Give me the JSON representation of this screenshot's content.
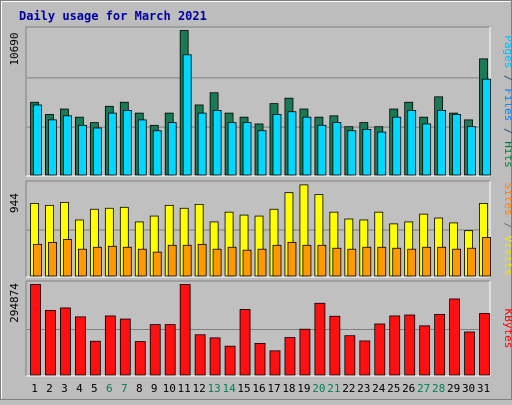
{
  "chart_data": {
    "type": "bar",
    "title": "Daily usage for March 2021",
    "categories": [
      "1",
      "2",
      "3",
      "4",
      "5",
      "6",
      "7",
      "8",
      "9",
      "10",
      "11",
      "12",
      "13",
      "14",
      "15",
      "16",
      "17",
      "18",
      "19",
      "20",
      "21",
      "22",
      "23",
      "24",
      "25",
      "26",
      "27",
      "28",
      "29",
      "30",
      "31"
    ],
    "weekend_days": [
      "6",
      "7",
      "13",
      "14",
      "20",
      "21",
      "27",
      "28"
    ],
    "panels": [
      {
        "id": "pages-files-hits",
        "ylabel_parts": [
          {
            "text": "Pages",
            "color": "#00c0ff"
          },
          {
            "text": " / ",
            "color": "#2a4f88"
          },
          {
            "text": "Files",
            "color": "#0080ff"
          },
          {
            "text": " / ",
            "color": "#2a4f88"
          },
          {
            "text": "Hits",
            "color": "#008040"
          }
        ],
        "max_label": "10690",
        "max": 10690,
        "gridline_fractions": [
          0.67,
          0.33
        ],
        "series": [
          {
            "name": "Hits",
            "color": "#1a7a55",
            "values": [
              5400,
              4500,
              4900,
              4300,
              3900,
              5100,
              5400,
              4600,
              3700,
              4600,
              10690,
              5200,
              6100,
              4600,
              4300,
              3800,
              5300,
              5700,
              4900,
              4300,
              4400,
              3600,
              3900,
              3600,
              4900,
              5400,
              4300,
              5800,
              4600,
              4100,
              8600
            ]
          },
          {
            "name": "Pages",
            "color": "#00d8ff",
            "values": [
              5200,
              4100,
              4400,
              3700,
              3500,
              4600,
              4800,
              4100,
              3300,
              3900,
              8900,
              4600,
              4800,
              3900,
              3900,
              3300,
              4500,
              4700,
              4300,
              3700,
              3900,
              3300,
              3400,
              3200,
              4300,
              4800,
              3800,
              4800,
              4500,
              3600,
              7100
            ]
          }
        ]
      },
      {
        "id": "sites-visits",
        "ylabel_parts": [
          {
            "text": "Sites",
            "color": "#ff8000"
          },
          {
            "text": " / ",
            "color": "#707070"
          },
          {
            "text": "Visits",
            "color": "#e8e800"
          }
        ],
        "max_label": "944",
        "max": 944,
        "gridline_fractions": [
          0.5
        ],
        "series": [
          {
            "name": "Visits",
            "color": "#ffff00",
            "values": [
              750,
              730,
              760,
              580,
              690,
              700,
              710,
              560,
              620,
              730,
              700,
              740,
              560,
              660,
              630,
              620,
              690,
              860,
              940,
              840,
              660,
              590,
              580,
              660,
              540,
              560,
              640,
              600,
              550,
              470,
              750
            ]
          },
          {
            "name": "Sites",
            "color": "#ff9900",
            "values": [
              330,
              350,
              380,
              280,
              300,
              310,
              300,
              280,
              250,
              320,
              320,
              330,
              280,
              300,
              270,
              280,
              320,
              350,
              320,
              320,
              290,
              280,
              300,
              300,
              290,
              280,
              300,
              300,
              280,
              290,
              400
            ]
          }
        ]
      },
      {
        "id": "kbytes",
        "ylabel_parts": [
          {
            "text": "KBytes",
            "color": "#ff0000"
          }
        ],
        "max_label": "294874",
        "max": 294874,
        "gridline_fractions": [
          0.5
        ],
        "series": [
          {
            "name": "KBytes",
            "color": "#ff1010",
            "values": [
              294874,
              211000,
              219000,
              190000,
              111000,
              193000,
              183000,
              110000,
              165000,
              165000,
              294874,
              132000,
              122000,
              95000,
              214000,
              104000,
              80000,
              123000,
              150000,
              234000,
              192000,
              129000,
              112000,
              167000,
              193000,
              196000,
              161000,
              198000,
              248000,
              141000,
              201000
            ]
          }
        ]
      }
    ]
  }
}
